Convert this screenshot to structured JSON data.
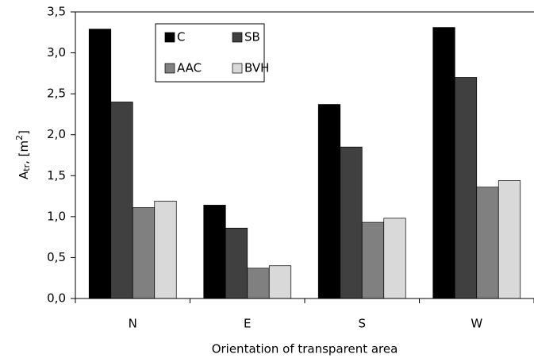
{
  "chart_data": {
    "type": "bar",
    "xlabel": "Orientation of transparent area",
    "ylabel_parts": [
      "A",
      "tr",
      ", [m",
      "2",
      "]"
    ],
    "categories": [
      "N",
      "E",
      "S",
      "W"
    ],
    "series": [
      {
        "name": "C",
        "color": "#000000",
        "values": [
          3.29,
          1.14,
          2.37,
          3.31
        ]
      },
      {
        "name": "SB",
        "color": "#404040",
        "values": [
          2.4,
          0.86,
          1.85,
          2.7
        ]
      },
      {
        "name": "AAC",
        "color": "#808080",
        "values": [
          1.11,
          0.37,
          0.93,
          1.36
        ]
      },
      {
        "name": "BVH",
        "color": "#d9d9d9",
        "values": [
          1.19,
          0.4,
          0.98,
          1.44
        ]
      }
    ],
    "ylim": [
      0,
      3.5
    ],
    "yticks": [
      {
        "value": 0,
        "label": "0,0"
      },
      {
        "value": 0.5,
        "label": "0,5"
      },
      {
        "value": 1,
        "label": "1,0"
      },
      {
        "value": 1.5,
        "label": "1,5"
      },
      {
        "value": 2,
        "label": "2,0"
      },
      {
        "value": 2.5,
        "label": "2,5"
      },
      {
        "value": 3,
        "label": "3,0"
      },
      {
        "value": 3.5,
        "label": "3,5"
      }
    ],
    "legend": "upper left"
  }
}
